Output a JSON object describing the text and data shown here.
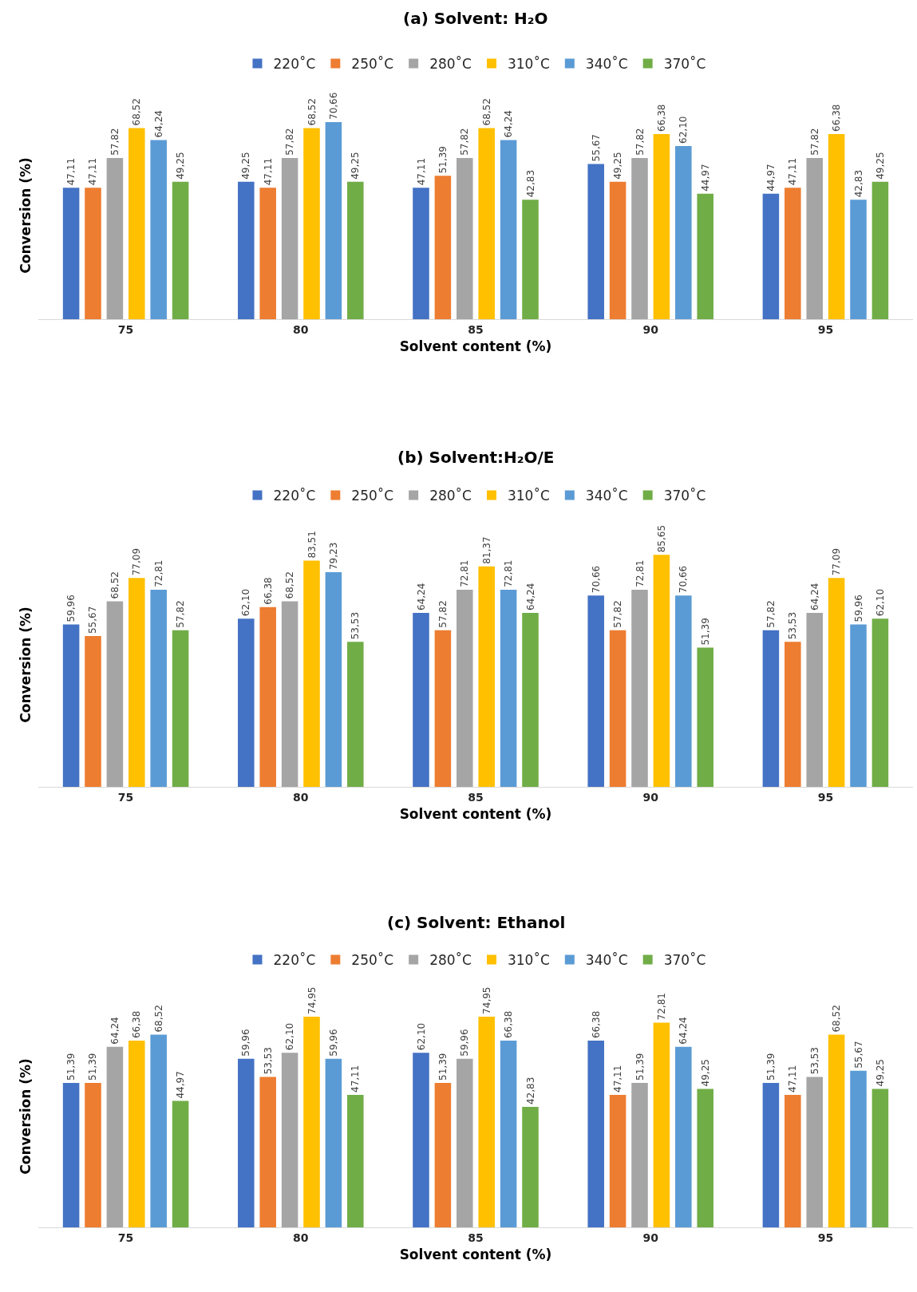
{
  "chart_data": [
    {
      "type": "bar",
      "title": "(a) Solvent: H₂O",
      "xlabel": "Solvent content (%)",
      "ylabel": "Conversion (%)",
      "categories": [
        "75",
        "80",
        "85",
        "90",
        "95"
      ],
      "tick_labels": "x",
      "legend": "top",
      "series": [
        {
          "name": "220˚C",
          "color": "#4472c4",
          "values": [
            47.11,
            49.25,
            47.11,
            55.67,
            44.97
          ],
          "value_labels": [
            "47,11",
            "49,25",
            "47,11",
            "55,67",
            "44,97"
          ]
        },
        {
          "name": "250˚C",
          "color": "#ed7d31",
          "values": [
            47.11,
            47.11,
            51.39,
            49.25,
            47.11
          ],
          "value_labels": [
            "47,11",
            "47,11",
            "51,39",
            "49,25",
            "47,11"
          ]
        },
        {
          "name": "280˚C",
          "color": "#a5a5a5",
          "values": [
            57.82,
            57.82,
            57.82,
            57.82,
            57.82
          ],
          "value_labels": [
            "57,82",
            "57,82",
            "57,82",
            "57,82",
            "57,82"
          ]
        },
        {
          "name": "310˚C",
          "color": "#ffc000",
          "values": [
            68.52,
            68.52,
            68.52,
            66.38,
            66.38
          ],
          "value_labels": [
            "68,52",
            "68,52",
            "68,52",
            "66,38",
            "66,38"
          ]
        },
        {
          "name": "340˚C",
          "color": "#5b9bd5",
          "values": [
            64.24,
            70.66,
            64.24,
            62.1,
            42.83
          ],
          "value_labels": [
            "64,24",
            "70,66",
            "64,24",
            "62,10",
            "42,83"
          ]
        },
        {
          "name": "370˚C",
          "color": "#70ad47",
          "values": [
            49.25,
            49.25,
            42.83,
            44.97,
            49.25
          ],
          "value_labels": [
            "49,25",
            "49,25",
            "42,83",
            "44,97",
            "49,25"
          ]
        }
      ]
    },
    {
      "type": "bar",
      "title": "(b) Solvent:H₂O/E",
      "xlabel": "Solvent content (%)",
      "ylabel": "Conversion (%)",
      "categories": [
        "75",
        "80",
        "85",
        "90",
        "95"
      ],
      "tick_labels": "x",
      "legend": "top",
      "series": [
        {
          "name": "220˚C",
          "color": "#4472c4",
          "values": [
            59.96,
            62.1,
            64.24,
            70.66,
            57.82
          ],
          "value_labels": [
            "59,96",
            "62,10",
            "64,24",
            "70,66",
            "57,82"
          ]
        },
        {
          "name": "250˚C",
          "color": "#ed7d31",
          "values": [
            55.67,
            66.38,
            57.82,
            57.82,
            53.53
          ],
          "value_labels": [
            "55,67",
            "66,38",
            "57,82",
            "57,82",
            "53,53"
          ]
        },
        {
          "name": "280˚C",
          "color": "#a5a5a5",
          "values": [
            68.52,
            68.52,
            72.81,
            72.81,
            64.24
          ],
          "value_labels": [
            "68,52",
            "68,52",
            "72,81",
            "72,81",
            "64,24"
          ]
        },
        {
          "name": "310˚C",
          "color": "#ffc000",
          "values": [
            77.09,
            83.51,
            81.37,
            85.65,
            77.09
          ],
          "value_labels": [
            "77,09",
            "83,51",
            "81,37",
            "85,65",
            "77,09"
          ]
        },
        {
          "name": "340˚C",
          "color": "#5b9bd5",
          "values": [
            72.81,
            79.23,
            72.81,
            70.66,
            59.96
          ],
          "value_labels": [
            "72,81",
            "79,23",
            "72,81",
            "70,66",
            "59,96"
          ]
        },
        {
          "name": "370˚C",
          "color": "#70ad47",
          "values": [
            57.82,
            53.53,
            64.24,
            51.39,
            62.1
          ],
          "value_labels": [
            "57,82",
            "53,53",
            "64,24",
            "51,39",
            "62,10"
          ]
        }
      ]
    },
    {
      "type": "bar",
      "title": "(c) Solvent: Ethanol",
      "xlabel": "Solvent content (%)",
      "ylabel": "Conversion (%)",
      "categories": [
        "75",
        "80",
        "85",
        "90",
        "95"
      ],
      "tick_labels": "x",
      "legend": "top",
      "series": [
        {
          "name": "220˚C",
          "color": "#4472c4",
          "values": [
            51.39,
            59.96,
            62.1,
            66.38,
            51.39
          ],
          "value_labels": [
            "51,39",
            "59,96",
            "62,10",
            "66,38",
            "51,39"
          ]
        },
        {
          "name": "250˚C",
          "color": "#ed7d31",
          "values": [
            51.39,
            53.53,
            51.39,
            47.11,
            47.11
          ],
          "value_labels": [
            "51,39",
            "53,53",
            "51,39",
            "47,11",
            "47,11"
          ]
        },
        {
          "name": "280˚C",
          "color": "#a5a5a5",
          "values": [
            64.24,
            62.1,
            59.96,
            51.39,
            53.53
          ],
          "value_labels": [
            "64,24",
            "62,10",
            "59,96",
            "51,39",
            "53,53"
          ]
        },
        {
          "name": "310˚C",
          "color": "#ffc000",
          "values": [
            66.38,
            74.95,
            74.95,
            72.81,
            68.52
          ],
          "value_labels": [
            "66,38",
            "74,95",
            "74,95",
            "72,81",
            "68,52"
          ]
        },
        {
          "name": "340˚C",
          "color": "#5b9bd5",
          "values": [
            68.52,
            59.96,
            66.38,
            64.24,
            55.67
          ],
          "value_labels": [
            "68,52",
            "59,96",
            "66,38",
            "64,24",
            "55,67"
          ]
        },
        {
          "name": "370˚C",
          "color": "#70ad47",
          "values": [
            44.97,
            47.11,
            42.83,
            49.25,
            49.25
          ],
          "value_labels": [
            "44,97",
            "47,11",
            "42,83",
            "49,25",
            "49,25"
          ]
        }
      ]
    }
  ]
}
